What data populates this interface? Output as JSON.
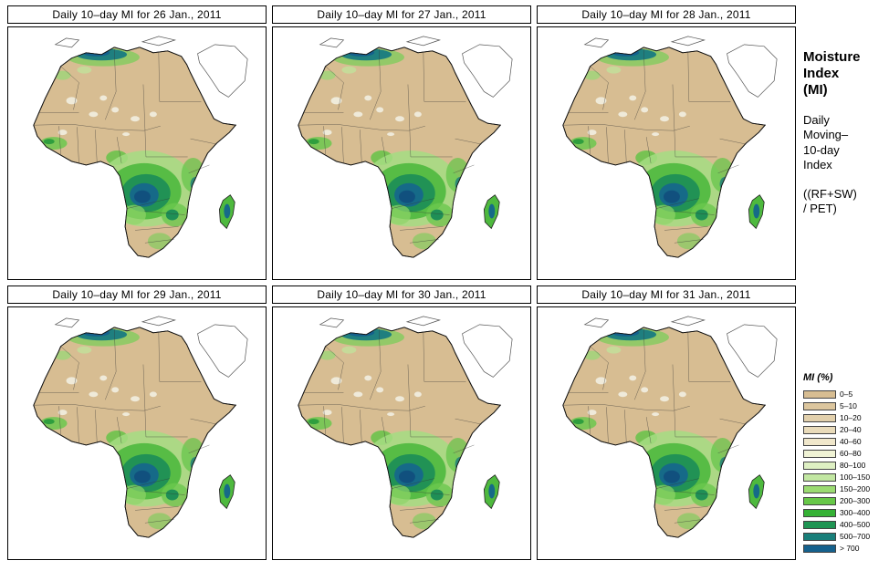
{
  "panels": [
    {
      "title": "Daily 10–day MI for 26 Jan., 2011"
    },
    {
      "title": "Daily 10–day MI for 27 Jan., 2011"
    },
    {
      "title": "Daily 10–day MI for 28 Jan., 2011"
    },
    {
      "title": "Daily 10–day MI for 29 Jan., 2011"
    },
    {
      "title": "Daily 10–day MI for 30 Jan., 2011"
    },
    {
      "title": "Daily 10–day MI for 31 Jan., 2011"
    }
  ],
  "sidebar": {
    "title_lines": [
      "Moisture",
      "Index",
      "(MI)"
    ],
    "subtitle_lines": [
      "Daily",
      "Moving–",
      "10-day",
      "Index"
    ],
    "formula_lines": [
      "((RF+SW)",
      " / PET)"
    ]
  },
  "legend": {
    "title": "MI (%)",
    "entries": [
      {
        "label": "0–5",
        "color": "#d7bd92"
      },
      {
        "label": "5–10",
        "color": "#dcc69e"
      },
      {
        "label": "10–20",
        "color": "#e2d0ac"
      },
      {
        "label": "20–40",
        "color": "#e9dbba"
      },
      {
        "label": "40–60",
        "color": "#f0e7cb"
      },
      {
        "label": "60–80",
        "color": "#f0f3d5"
      },
      {
        "label": "80–100",
        "color": "#def0c3"
      },
      {
        "label": "100–150",
        "color": "#c2e7a2"
      },
      {
        "label": "150–200",
        "color": "#9bdb72"
      },
      {
        "label": "200–300",
        "color": "#67c848"
      },
      {
        "label": "300–400",
        "color": "#35b135"
      },
      {
        "label": "400–500",
        "color": "#1f9553"
      },
      {
        "label": "500–700",
        "color": "#197f7a"
      },
      {
        "label": "> 700",
        "color": "#15618d"
      }
    ]
  },
  "map_colors": {
    "land_base": "#d7bd92",
    "ocean": "#ffffff",
    "high_mi_core": "#11507e"
  }
}
